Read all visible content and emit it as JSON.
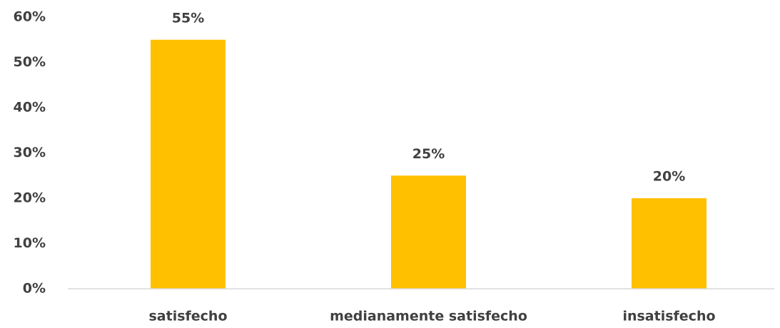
{
  "chart_data": {
    "type": "bar",
    "categories": [
      "satisfecho",
      "medianamente satisfecho",
      "insatisfecho"
    ],
    "values": [
      55,
      25,
      20
    ],
    "value_labels": [
      "55%",
      "25%",
      "20%"
    ],
    "color": "#ffc000",
    "ylim": [
      0,
      60
    ],
    "yticks": [
      {
        "value": 0,
        "label": "0%"
      },
      {
        "value": 10,
        "label": "10%"
      },
      {
        "value": 20,
        "label": "20%"
      },
      {
        "value": 30,
        "label": "30%"
      },
      {
        "value": 40,
        "label": "40%"
      },
      {
        "value": 50,
        "label": "50%"
      },
      {
        "value": 60,
        "label": "60%"
      }
    ],
    "grid": false
  }
}
